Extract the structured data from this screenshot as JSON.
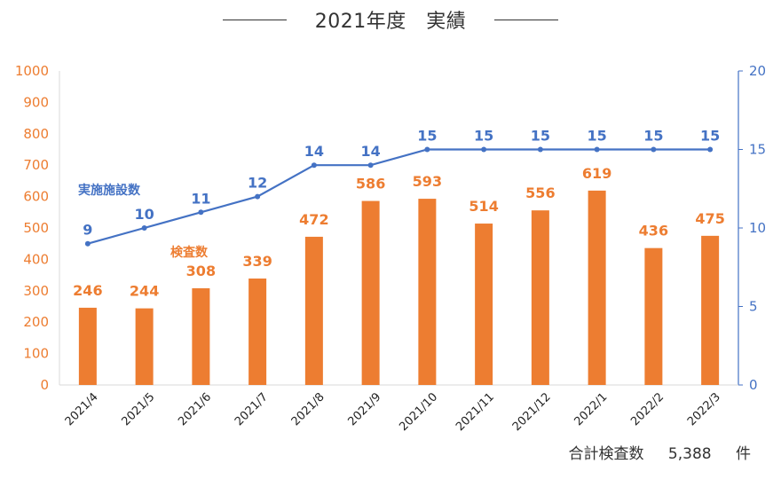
{
  "chart_data": {
    "type": "bar",
    "title": "2021年度　実績",
    "categories": [
      "2021/4",
      "2021/5",
      "2021/6",
      "2021/7",
      "2021/8",
      "2021/9",
      "2021/10",
      "2021/11",
      "2021/12",
      "2022/1",
      "2022/2",
      "2022/3"
    ],
    "series": [
      {
        "name": "検査数",
        "type": "bar",
        "axis": "left",
        "color": "#ED7D31",
        "values": [
          246,
          244,
          308,
          339,
          472,
          586,
          593,
          514,
          556,
          619,
          436,
          475
        ]
      },
      {
        "name": "実施施設数",
        "type": "line",
        "axis": "right",
        "color": "#4472C4",
        "values": [
          9,
          10,
          11,
          12,
          14,
          14,
          15,
          15,
          15,
          15,
          15,
          15
        ]
      }
    ],
    "left_axis": {
      "min": 0,
      "max": 1000,
      "step": 100,
      "color": "#ED7D31"
    },
    "right_axis": {
      "min": 0,
      "max": 20,
      "step": 5,
      "color": "#4472C4"
    },
    "grid": false,
    "legend": "inline-labels"
  },
  "footer": {
    "total_label": "合計検査数",
    "total_value": "5,388",
    "total_unit": "件"
  }
}
